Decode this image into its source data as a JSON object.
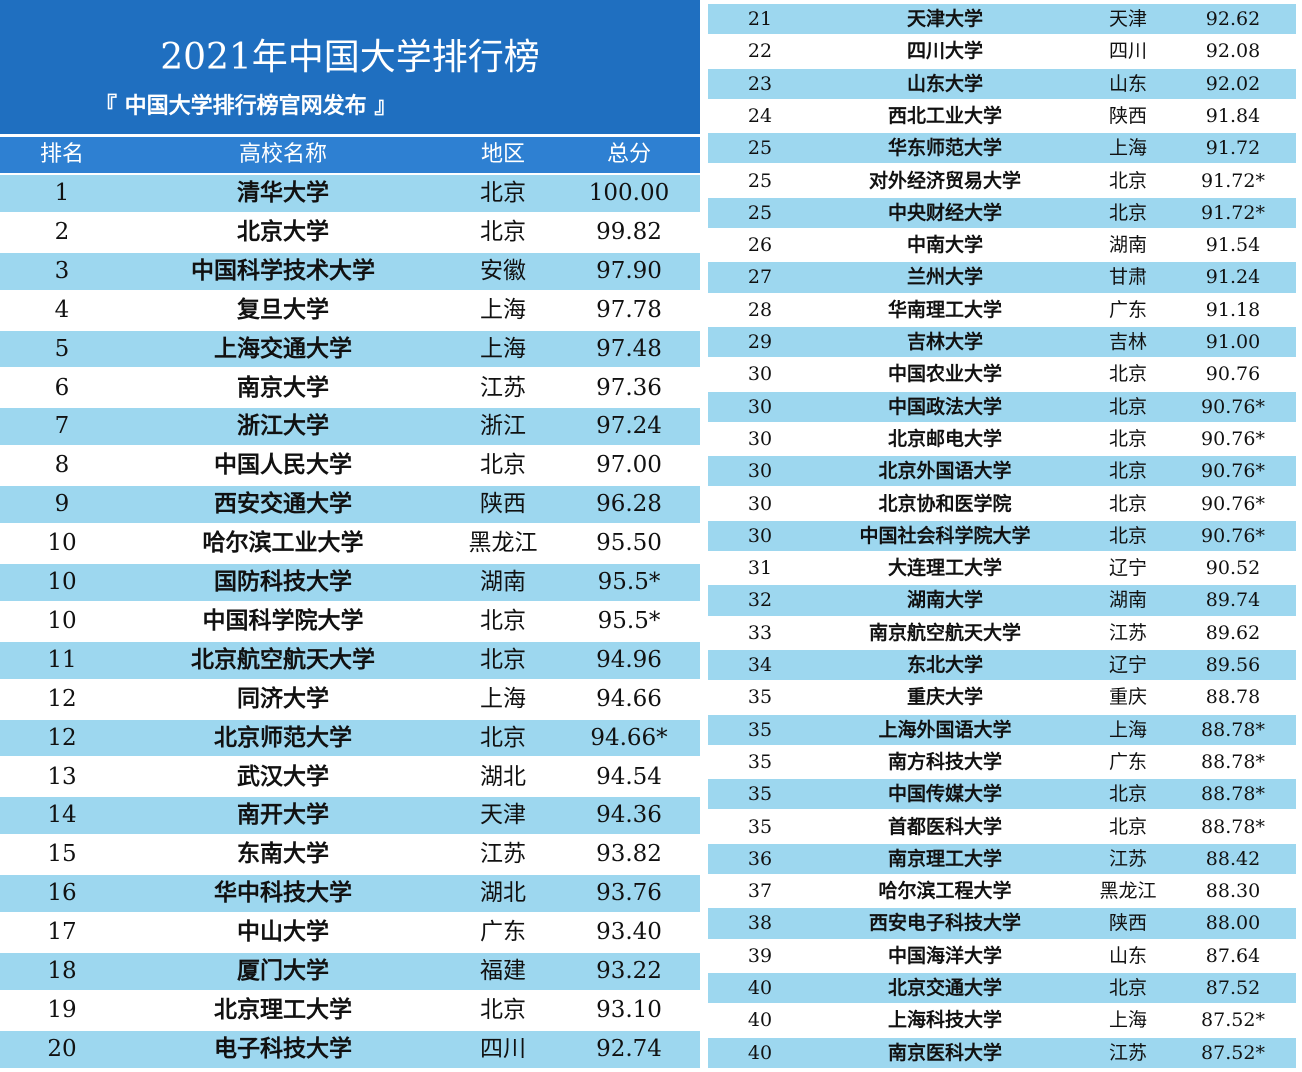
{
  "header": {
    "title": "2021年中国大学排行榜",
    "subtitle": "『 中国大学排行榜官网发布 』"
  },
  "columns": [
    "排名",
    "高校名称",
    "地区",
    "总分"
  ],
  "left": {
    "rows": [
      [
        "1",
        "清华大学",
        "北京",
        "100.00"
      ],
      [
        "2",
        "北京大学",
        "北京",
        "99.82"
      ],
      [
        "3",
        "中国科学技术大学",
        "安徽",
        "97.90"
      ],
      [
        "4",
        "复旦大学",
        "上海",
        "97.78"
      ],
      [
        "5",
        "上海交通大学",
        "上海",
        "97.48"
      ],
      [
        "6",
        "南京大学",
        "江苏",
        "97.36"
      ],
      [
        "7",
        "浙江大学",
        "浙江",
        "97.24"
      ],
      [
        "8",
        "中国人民大学",
        "北京",
        "97.00"
      ],
      [
        "9",
        "西安交通大学",
        "陕西",
        "96.28"
      ],
      [
        "10",
        "哈尔滨工业大学",
        "黑龙江",
        "95.50"
      ],
      [
        "10",
        "国防科技大学",
        "湖南",
        "95.5*"
      ],
      [
        "10",
        "中国科学院大学",
        "北京",
        "95.5*"
      ],
      [
        "11",
        "北京航空航天大学",
        "北京",
        "94.96"
      ],
      [
        "12",
        "同济大学",
        "上海",
        "94.66"
      ],
      [
        "12",
        "北京师范大学",
        "北京",
        "94.66*"
      ],
      [
        "13",
        "武汉大学",
        "湖北",
        "94.54"
      ],
      [
        "14",
        "南开大学",
        "天津",
        "94.36"
      ],
      [
        "15",
        "东南大学",
        "江苏",
        "93.82"
      ],
      [
        "16",
        "华中科技大学",
        "湖北",
        "93.76"
      ],
      [
        "17",
        "中山大学",
        "广东",
        "93.40"
      ],
      [
        "18",
        "厦门大学",
        "福建",
        "93.22"
      ],
      [
        "19",
        "北京理工大学",
        "北京",
        "93.10"
      ],
      [
        "20",
        "电子科技大学",
        "四川",
        "92.74"
      ]
    ]
  },
  "right": {
    "rows": [
      [
        "21",
        "天津大学",
        "天津",
        "92.62"
      ],
      [
        "22",
        "四川大学",
        "四川",
        "92.08"
      ],
      [
        "23",
        "山东大学",
        "山东",
        "92.02"
      ],
      [
        "24",
        "西北工业大学",
        "陕西",
        "91.84"
      ],
      [
        "25",
        "华东师范大学",
        "上海",
        "91.72"
      ],
      [
        "25",
        "对外经济贸易大学",
        "北京",
        "91.72*"
      ],
      [
        "25",
        "中央财经大学",
        "北京",
        "91.72*"
      ],
      [
        "26",
        "中南大学",
        "湖南",
        "91.54"
      ],
      [
        "27",
        "兰州大学",
        "甘肃",
        "91.24"
      ],
      [
        "28",
        "华南理工大学",
        "广东",
        "91.18"
      ],
      [
        "29",
        "吉林大学",
        "吉林",
        "91.00"
      ],
      [
        "30",
        "中国农业大学",
        "北京",
        "90.76"
      ],
      [
        "30",
        "中国政法大学",
        "北京",
        "90.76*"
      ],
      [
        "30",
        "北京邮电大学",
        "北京",
        "90.76*"
      ],
      [
        "30",
        "北京外国语大学",
        "北京",
        "90.76*"
      ],
      [
        "30",
        "北京协和医学院",
        "北京",
        "90.76*"
      ],
      [
        "30",
        "中国社会科学院大学",
        "北京",
        "90.76*"
      ],
      [
        "31",
        "大连理工大学",
        "辽宁",
        "90.52"
      ],
      [
        "32",
        "湖南大学",
        "湖南",
        "89.74"
      ],
      [
        "33",
        "南京航空航天大学",
        "江苏",
        "89.62"
      ],
      [
        "34",
        "东北大学",
        "辽宁",
        "89.56"
      ],
      [
        "35",
        "重庆大学",
        "重庆",
        "88.78"
      ],
      [
        "35",
        "上海外国语大学",
        "上海",
        "88.78*"
      ],
      [
        "35",
        "南方科技大学",
        "广东",
        "88.78*"
      ],
      [
        "35",
        "中国传媒大学",
        "北京",
        "88.78*"
      ],
      [
        "35",
        "首都医科大学",
        "北京",
        "88.78*"
      ],
      [
        "36",
        "南京理工大学",
        "江苏",
        "88.42"
      ],
      [
        "37",
        "哈尔滨工程大学",
        "黑龙江",
        "88.30"
      ],
      [
        "38",
        "西安电子科技大学",
        "陕西",
        "88.00"
      ],
      [
        "39",
        "中国海洋大学",
        "山东",
        "87.64"
      ],
      [
        "40",
        "北京交通大学",
        "北京",
        "87.52"
      ],
      [
        "40",
        "上海科技大学",
        "上海",
        "87.52*"
      ],
      [
        "40",
        "南京医科大学",
        "江苏",
        "87.52*"
      ]
    ]
  }
}
